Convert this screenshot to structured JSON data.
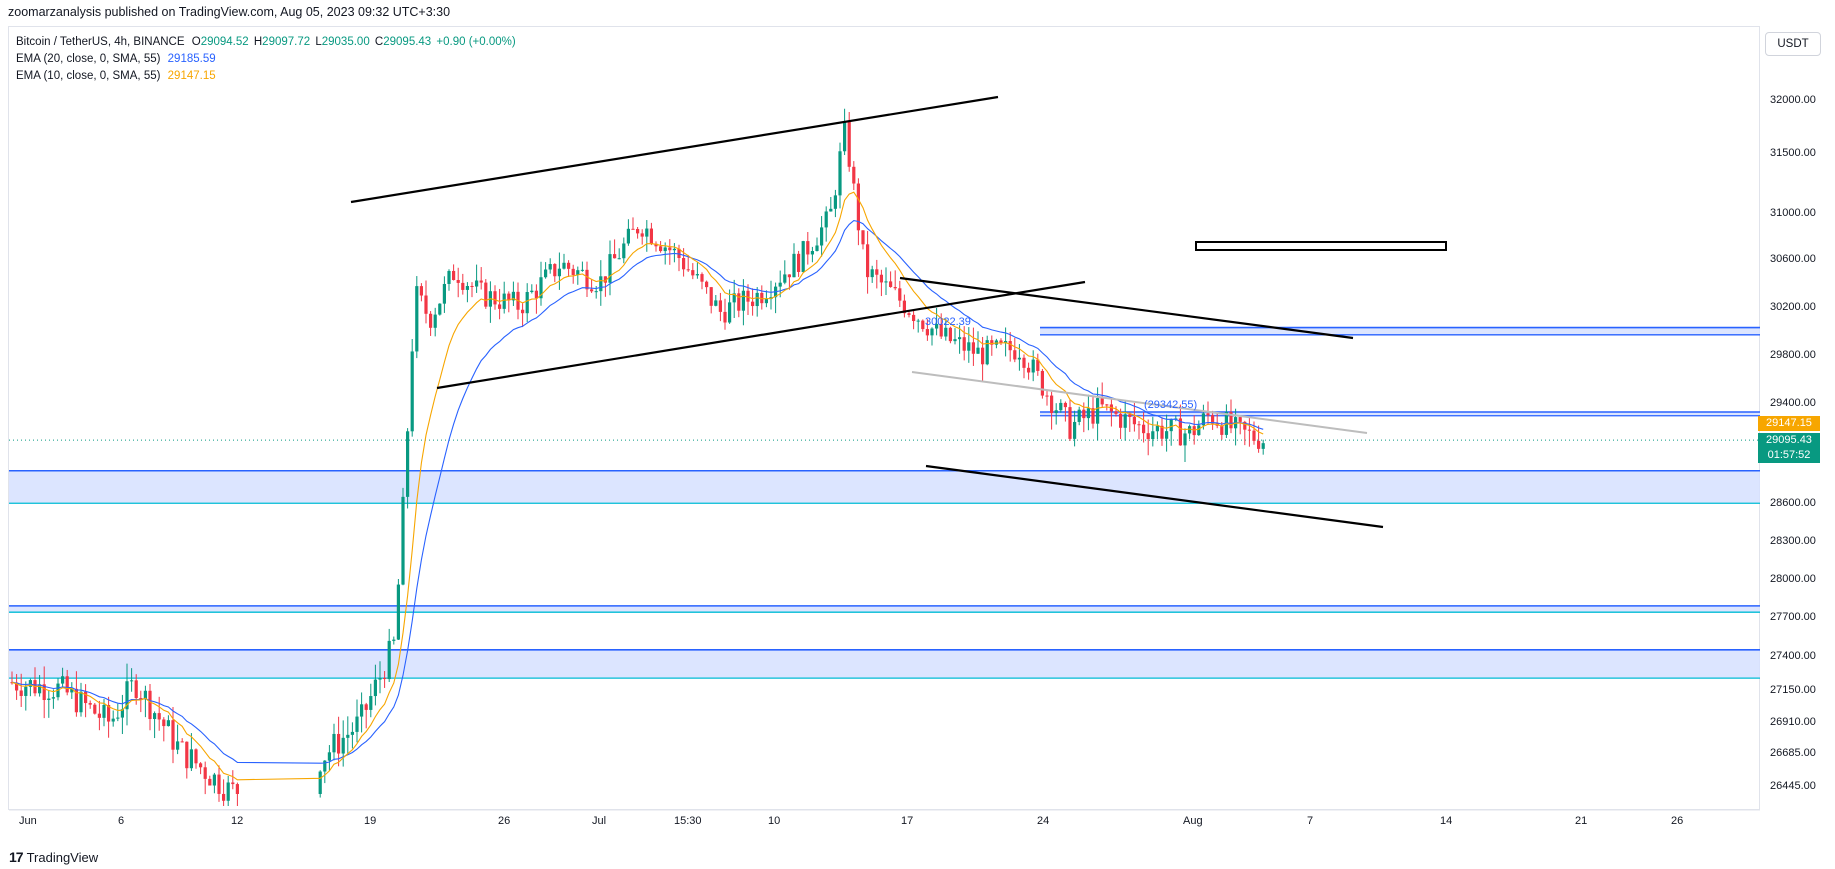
{
  "header": {
    "published": "zoomarzanalysis published on TradingView.com, Aug 05, 2023 09:32 UTC+3:30",
    "symbol": "Bitcoin / TetherUS, 4h, BINANCE",
    "open_label": "O",
    "open": "29094.52",
    "high_label": "H",
    "high": "29097.72",
    "low_label": "L",
    "low": "29035.00",
    "close_label": "C",
    "close": "29095.43",
    "change": "+0.90 (+0.00%)",
    "currency": "USDT"
  },
  "indicators": [
    {
      "label": "EMA (20, close, 0, SMA, 55)",
      "value": "29185.59",
      "color": "#2962ff"
    },
    {
      "label": "EMA (10, close, 0, SMA, 55)",
      "value": "29147.15",
      "color": "#f7a600"
    }
  ],
  "price_tags": {
    "ema10": "29147.15",
    "last": "29095.43",
    "countdown": "01:57:52"
  },
  "chart_labels": {
    "label_a": "30022.39",
    "label_b": "(29342.55)"
  },
  "colors": {
    "up": "#089981",
    "down": "#f23645",
    "ema20": "#2962ff",
    "ema10": "#f7a600",
    "zone_fill": "#d6e0ff",
    "zone_line": "#2962ff",
    "zone_line2": "#00bcd4"
  },
  "footer": {
    "logo": "17",
    "brand": "TradingView"
  },
  "chart_data": {
    "type": "candlestick",
    "title": "Bitcoin / TetherUS, 4h, BINANCE",
    "x_ticks": [
      "Jun",
      "6",
      "12",
      "19",
      "26",
      "Jul",
      "15:30",
      "10",
      "17",
      "24",
      "Aug",
      "7",
      "14",
      "21",
      "26"
    ],
    "y_ticks": [
      32000,
      31500,
      31000,
      30600,
      30200,
      29800,
      29400,
      28600,
      28300,
      28000,
      27700,
      27400,
      27150,
      26910,
      26685,
      26445
    ],
    "y_tick_labels": [
      "32000.00",
      "31500.00",
      "31000.00",
      "30600.00",
      "30200.00",
      "29800.00",
      "29400.00",
      "28600.00",
      "28300.00",
      "28000.00",
      "27700.00",
      "27400.00",
      "27150.00",
      "26910.00",
      "26685.00",
      "26445.00"
    ],
    "zones": [
      {
        "top": 28850,
        "bottom": 28590
      },
      {
        "top": 27780,
        "bottom": 27730
      },
      {
        "top": 27440,
        "bottom": 27230
      },
      {
        "top": 30020,
        "bottom": 29960
      },
      {
        "top": 29320,
        "bottom": 29290
      }
    ],
    "series": [
      {
        "name": "EMA (20, close, 0, SMA, 55)",
        "last": 29185.59
      },
      {
        "name": "EMA (10, close, 0, SMA, 55)",
        "last": 29147.15
      }
    ],
    "last_price": 29095.43
  }
}
